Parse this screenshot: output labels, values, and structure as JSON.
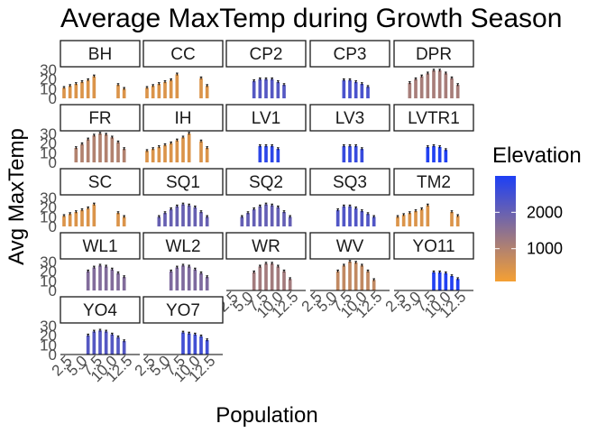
{
  "chart_data": {
    "type": "bar",
    "title": "Average MaxTemp during Growth Season",
    "xlabel": "Population",
    "ylabel": "Avg MaxTemp",
    "x_ticks": [
      2.5,
      5.0,
      7.5,
      10.0,
      12.5
    ],
    "x_tick_labels": [
      "2.5",
      "5.0",
      "7.5",
      "10.0",
      "12.5"
    ],
    "y_ticks": [
      0,
      10,
      20,
      30
    ],
    "y_tick_labels": [
      "0",
      "10",
      "20",
      "30"
    ],
    "xlim": [
      0.4,
      13.6
    ],
    "ylim": [
      0,
      30
    ],
    "legend": {
      "title": "Elevation",
      "type": "gradient",
      "low_color": "#F5A033",
      "high_color": "#1D3FF5",
      "min": 100,
      "max": 3000,
      "ticks": [
        1000,
        2000
      ],
      "tick_labels": [
        "1000",
        "2000"
      ],
      "placement": "right"
    },
    "facets": [
      {
        "name": "BH",
        "elevation": 450,
        "x": [
          1,
          2,
          3,
          4,
          5,
          6,
          10,
          11
        ],
        "values": [
          11,
          13,
          15,
          17,
          19,
          23,
          14,
          10
        ]
      },
      {
        "name": "CC",
        "elevation": 450,
        "x": [
          1,
          2,
          3,
          4,
          5,
          6,
          10,
          11
        ],
        "values": [
          11,
          13,
          15,
          17,
          19,
          25,
          21,
          13
        ]
      },
      {
        "name": "CP2",
        "elevation": 2250,
        "x": [
          5,
          6,
          7,
          8,
          9,
          10
        ],
        "values": [
          18,
          20,
          20,
          20,
          17,
          14
        ]
      },
      {
        "name": "CP3",
        "elevation": 2400,
        "x": [
          6,
          7,
          8,
          9,
          10
        ],
        "values": [
          19,
          19,
          17,
          15,
          12
        ]
      },
      {
        "name": "DPR",
        "elevation": 1150,
        "x": [
          3,
          4,
          5,
          6,
          7,
          8,
          9,
          10,
          11
        ],
        "values": [
          16,
          20,
          23,
          26,
          29,
          29,
          26,
          21,
          14
        ]
      },
      {
        "name": "FR",
        "elevation": 1000,
        "x": [
          3,
          4,
          5,
          6,
          7,
          8,
          9,
          10,
          11
        ],
        "values": [
          15,
          19,
          24,
          28,
          30,
          29,
          26,
          21,
          14
        ]
      },
      {
        "name": "IH",
        "elevation": 450,
        "x": [
          1,
          2,
          3,
          4,
          5,
          6,
          7,
          8,
          10,
          11
        ],
        "values": [
          12,
          14,
          16,
          18,
          20,
          23,
          26,
          30,
          22,
          15
        ]
      },
      {
        "name": "LV1",
        "elevation": 2800,
        "x": [
          6,
          7,
          8,
          9
        ],
        "values": [
          17,
          17,
          17,
          14
        ]
      },
      {
        "name": "LV3",
        "elevation": 2650,
        "x": [
          6,
          7,
          8,
          9
        ],
        "values": [
          17,
          17,
          17,
          14
        ]
      },
      {
        "name": "LVTR1",
        "elevation": 2950,
        "x": [
          6,
          7,
          8,
          9
        ],
        "values": [
          16,
          17,
          16,
          13
        ]
      },
      {
        "name": "SC",
        "elevation": 450,
        "x": [
          1,
          2,
          3,
          4,
          5,
          6,
          10,
          11
        ],
        "values": [
          11,
          13,
          15,
          17,
          19,
          23,
          14,
          10
        ]
      },
      {
        "name": "SQ1",
        "elevation": 2000,
        "x": [
          3,
          4,
          5,
          6,
          7,
          8,
          9,
          10,
          11
        ],
        "values": [
          10,
          14,
          18,
          21,
          23,
          22,
          20,
          15,
          10
        ]
      },
      {
        "name": "SQ2",
        "elevation": 2050,
        "x": [
          3,
          4,
          5,
          6,
          7,
          8,
          9,
          10,
          11
        ],
        "values": [
          10,
          14,
          18,
          21,
          23,
          22,
          20,
          15,
          10
        ]
      },
      {
        "name": "SQ3",
        "elevation": 2300,
        "x": [
          5,
          6,
          7,
          8,
          9,
          10,
          11
        ],
        "values": [
          17,
          21,
          21,
          19,
          16,
          13,
          10
        ]
      },
      {
        "name": "TM2",
        "elevation": 450,
        "x": [
          1,
          2,
          3,
          4,
          5,
          6,
          10,
          11
        ],
        "values": [
          10,
          12,
          14,
          16,
          18,
          22,
          15,
          11
        ]
      },
      {
        "name": "WL1",
        "elevation": 1650,
        "x": [
          5,
          6,
          7,
          8,
          9,
          10,
          11
        ],
        "values": [
          20,
          24,
          26,
          25,
          22,
          18,
          14
        ]
      },
      {
        "name": "WL2",
        "elevation": 1700,
        "x": [
          5,
          6,
          7,
          8,
          9,
          10,
          11
        ],
        "values": [
          20,
          24,
          26,
          25,
          22,
          18,
          14
        ]
      },
      {
        "name": "WR",
        "elevation": 1200,
        "x": [
          5,
          6,
          7,
          8,
          9,
          10,
          11
        ],
        "values": [
          19,
          25,
          28,
          28,
          25,
          20,
          12
        ]
      },
      {
        "name": "WV",
        "elevation": 800,
        "x": [
          5,
          6,
          7,
          8,
          9,
          10,
          11
        ],
        "values": [
          20,
          26,
          30,
          29,
          26,
          20,
          11
        ]
      },
      {
        "name": "YO11",
        "elevation": 2950,
        "x": [
          7,
          8,
          9,
          10,
          11
        ],
        "values": [
          19,
          19,
          18,
          15,
          12
        ]
      },
      {
        "name": "YO4",
        "elevation": 2250,
        "x": [
          5,
          6,
          7,
          8,
          9,
          10,
          11
        ],
        "values": [
          20,
          24,
          25,
          24,
          21,
          18,
          14
        ]
      },
      {
        "name": "YO7",
        "elevation": 2500,
        "x": [
          7,
          8,
          9,
          10,
          11
        ],
        "values": [
          23,
          22,
          21,
          19,
          15
        ]
      }
    ]
  }
}
